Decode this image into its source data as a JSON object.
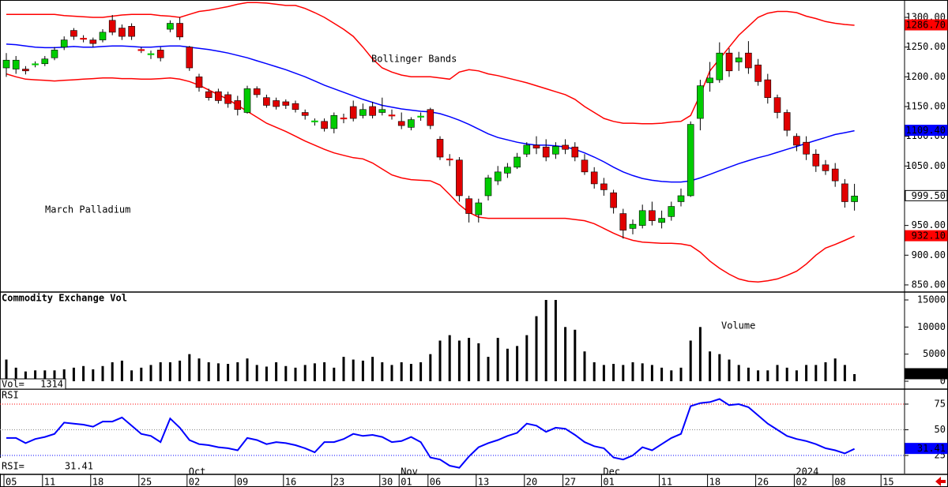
{
  "chart_data": [
    {
      "type": "candlestick",
      "title": "March Palladium",
      "annotation": "Bollinger Bands",
      "categories": [
        "05",
        null,
        null,
        null,
        "11",
        null,
        null,
        null,
        null,
        "18",
        null,
        null,
        null,
        null,
        "25",
        null,
        null,
        null,
        null,
        "02",
        null,
        null,
        null,
        null,
        "09",
        null,
        null,
        null,
        null,
        "16",
        null,
        null,
        null,
        null,
        "23",
        null,
        null,
        null,
        null,
        "30",
        null,
        "01",
        null,
        null,
        "06",
        null,
        null,
        null,
        null,
        "13",
        null,
        null,
        null,
        null,
        "20",
        null,
        null,
        null,
        "27",
        null,
        null,
        null,
        "01",
        null,
        null,
        null,
        null,
        null,
        "11",
        null,
        null,
        null,
        null,
        "18",
        null,
        null,
        null,
        null,
        "26",
        null,
        null,
        null,
        "02",
        null,
        null,
        null,
        "08",
        null,
        null,
        null,
        null,
        "15"
      ],
      "category_groups": [
        null,
        null,
        null,
        null,
        null,
        null,
        null,
        null,
        null,
        null,
        null,
        null,
        null,
        null,
        null,
        null,
        null,
        null,
        null,
        "Oct",
        null,
        null,
        null,
        null,
        null,
        null,
        null,
        null,
        null,
        null,
        null,
        null,
        null,
        null,
        null,
        null,
        null,
        null,
        null,
        null,
        null,
        "Nov",
        null,
        null,
        null,
        null,
        null,
        null,
        null,
        null,
        null,
        null,
        null,
        null,
        null,
        null,
        null,
        null,
        null,
        null,
        null,
        null,
        "Dec",
        null,
        null,
        null,
        null,
        null,
        null,
        null,
        null,
        null,
        null,
        null,
        null,
        null,
        null,
        null,
        null,
        null,
        null,
        null,
        "2024",
        null,
        null,
        null,
        null,
        null,
        null,
        null,
        null,
        null
      ],
      "open": [
        1215,
        1213,
        1213,
        1221,
        1222,
        1232,
        1250,
        1278,
        1265,
        1262,
        1262,
        1295,
        1282,
        1285,
        1246,
        1238,
        1245,
        1280,
        1290,
        1250,
        1200,
        1175,
        1175,
        1170,
        1160,
        1140,
        1180,
        1165,
        1160,
        1158,
        1155,
        1140,
        1124,
        1125,
        1113,
        1131,
        1150,
        1135,
        1150,
        1140,
        1136,
        1125,
        1115,
        1132,
        1145,
        1095,
        1062,
        1060,
        995,
        968,
        1000,
        1025,
        1038,
        1048,
        1070,
        1085,
        1082,
        1070,
        1085,
        1082,
        1060,
        1040,
        1020,
        1005,
        970,
        945,
        950,
        975,
        955,
        965,
        990,
        1000,
        1130,
        1190,
        1195,
        1240,
        1225,
        1240,
        1220,
        1195,
        1165,
        1140,
        1100,
        1090,
        1070,
        1052,
        1045,
        1020,
        990,
        null,
        null,
        null
      ],
      "high": [
        1240,
        1235,
        1218,
        1226,
        1235,
        1250,
        1268,
        1282,
        1270,
        1266,
        1280,
        1304,
        1288,
        1290,
        1250,
        1244,
        1250,
        1295,
        1300,
        1252,
        1205,
        1180,
        1180,
        1175,
        1168,
        1185,
        1184,
        1170,
        1165,
        1162,
        1160,
        1145,
        1130,
        1130,
        1140,
        1138,
        1160,
        1155,
        1158,
        1165,
        1145,
        1140,
        1132,
        1140,
        1148,
        1100,
        1070,
        1065,
        1000,
        995,
        1035,
        1050,
        1055,
        1072,
        1090,
        1100,
        1095,
        1090,
        1095,
        1090,
        1070,
        1048,
        1030,
        1010,
        978,
        960,
        985,
        990,
        975,
        990,
        1012,
        1125,
        1195,
        1225,
        1258,
        1248,
        1242,
        1260,
        1230,
        1205,
        1170,
        1145,
        1105,
        1100,
        1078,
        1060,
        1055,
        1028,
        1020,
        null,
        null,
        null
      ],
      "low": [
        1200,
        1205,
        1204,
        1216,
        1218,
        1228,
        1245,
        1262,
        1258,
        1250,
        1258,
        1270,
        1262,
        1262,
        1240,
        1230,
        1226,
        1275,
        1262,
        1210,
        1175,
        1160,
        1155,
        1148,
        1135,
        1138,
        1165,
        1148,
        1145,
        1146,
        1140,
        1128,
        1118,
        1108,
        1105,
        1122,
        1125,
        1130,
        1130,
        1135,
        1128,
        1112,
        1110,
        1126,
        1112,
        1060,
        1050,
        990,
        955,
        955,
        992,
        1018,
        1030,
        1045,
        1065,
        1070,
        1058,
        1062,
        1070,
        1058,
        1035,
        1012,
        1000,
        970,
        928,
        935,
        945,
        950,
        945,
        958,
        982,
        998,
        1110,
        1175,
        1190,
        1200,
        1210,
        1205,
        1185,
        1155,
        1130,
        1100,
        1075,
        1060,
        1040,
        1035,
        1015,
        980,
        975,
        null,
        null,
        null
      ],
      "close": [
        1228,
        1228,
        1210,
        1222,
        1230,
        1245,
        1262,
        1268,
        1264,
        1256,
        1275,
        1275,
        1268,
        1268,
        1245,
        1239,
        1232,
        1290,
        1267,
        1215,
        1182,
        1165,
        1160,
        1155,
        1145,
        1180,
        1170,
        1152,
        1150,
        1152,
        1145,
        1135,
        1126,
        1113,
        1135,
        1130,
        1130,
        1145,
        1135,
        1145,
        1135,
        1118,
        1128,
        1134,
        1118,
        1065,
        1060,
        1000,
        970,
        988,
        1030,
        1040,
        1048,
        1065,
        1085,
        1080,
        1065,
        1083,
        1078,
        1065,
        1040,
        1020,
        1010,
        980,
        942,
        952,
        975,
        958,
        962,
        982,
        1000,
        1120,
        1185,
        1198,
        1240,
        1210,
        1232,
        1215,
        1192,
        1165,
        1140,
        1110,
        1085,
        1070,
        1050,
        1042,
        1025,
        990,
        999.5,
        null,
        null,
        null
      ],
      "close_label": "999.50",
      "up_color": "#00cc00",
      "down_color": "#e00000",
      "series": [
        {
          "color": "#ff0000",
          "last_label": "1286.70",
          "values": [
            1305,
            1305,
            1305,
            1305,
            1305,
            1305,
            1303,
            1302,
            1301,
            1300,
            1300,
            1302,
            1304,
            1305,
            1305,
            1305,
            1303,
            1302,
            1300,
            1305,
            1310,
            1312,
            1315,
            1318,
            1322,
            1325,
            1325,
            1324,
            1322,
            1320,
            1320,
            1315,
            1308,
            1300,
            1290,
            1280,
            1268,
            1250,
            1230,
            1215,
            1208,
            1203,
            1200,
            1200,
            1200,
            1198,
            1196,
            1208,
            1212,
            1210,
            1205,
            1202,
            1198,
            1194,
            1190,
            1185,
            1180,
            1175,
            1170,
            1162,
            1150,
            1140,
            1130,
            1125,
            1122,
            1122,
            1121,
            1121,
            1122,
            1124,
            1125,
            1135,
            1170,
            1210,
            1230,
            1250,
            1270,
            1285,
            1300,
            1307,
            1310,
            1310,
            1308,
            1302,
            1298,
            1293,
            1290,
            1288,
            1286.7,
            null,
            null,
            null
          ]
        },
        {
          "color": "#0000ff",
          "last_label": "1109.40",
          "values": [
            1255,
            1254,
            1252,
            1250,
            1249,
            1249,
            1250,
            1251,
            1250,
            1250,
            1251,
            1252,
            1252,
            1251,
            1250,
            1250,
            1251,
            1252,
            1252,
            1250,
            1248,
            1246,
            1243,
            1240,
            1236,
            1232,
            1227,
            1222,
            1217,
            1212,
            1206,
            1200,
            1193,
            1186,
            1180,
            1174,
            1168,
            1162,
            1157,
            1152,
            1149,
            1146,
            1144,
            1142,
            1141,
            1138,
            1133,
            1127,
            1120,
            1112,
            1104,
            1098,
            1094,
            1090,
            1087,
            1085,
            1085,
            1084,
            1082,
            1078,
            1072,
            1065,
            1057,
            1048,
            1040,
            1034,
            1029,
            1026,
            1024,
            1023,
            1023,
            1025,
            1030,
            1036,
            1042,
            1048,
            1054,
            1059,
            1064,
            1068,
            1073,
            1078,
            1083,
            1088,
            1093,
            1098,
            1103,
            1106,
            1109.4,
            null,
            null,
            null
          ]
        },
        {
          "color": "#ff0000",
          "last_label": "932.10",
          "values": [
            1205,
            1200,
            1196,
            1195,
            1194,
            1193,
            1194,
            1195,
            1196,
            1197,
            1198,
            1198,
            1197,
            1197,
            1196,
            1196,
            1197,
            1198,
            1196,
            1192,
            1186,
            1178,
            1170,
            1162,
            1152,
            1142,
            1132,
            1122,
            1115,
            1108,
            1100,
            1092,
            1085,
            1078,
            1072,
            1068,
            1064,
            1062,
            1055,
            1045,
            1035,
            1030,
            1027,
            1026,
            1025,
            1018,
            1002,
            985,
            972,
            964,
            962,
            962,
            962,
            962,
            962,
            962,
            962,
            962,
            962,
            960,
            958,
            953,
            945,
            937,
            930,
            925,
            922,
            921,
            920,
            920,
            919,
            916,
            905,
            890,
            878,
            868,
            860,
            856,
            855,
            857,
            860,
            866,
            873,
            885,
            900,
            912,
            918,
            925,
            932.1,
            null,
            null,
            null
          ]
        }
      ],
      "ylim": [
        838,
        1329.2
      ],
      "yticks": [
        {
          "value": 1300,
          "label": "1300.00"
        },
        {
          "value": 1250,
          "label": "1250.00"
        },
        {
          "value": 1200,
          "label": "1200.00"
        },
        {
          "value": 1150,
          "label": "1150.00"
        },
        {
          "value": 1100,
          "label": "1100.00"
        },
        {
          "value": 1050,
          "label": "1050.00"
        },
        {
          "value": 1000,
          "label": "1000.00"
        },
        {
          "value": 950,
          "label": "950.00"
        },
        {
          "value": 900,
          "label": "900.00"
        },
        {
          "value": 850,
          "label": "850.00"
        }
      ]
    },
    {
      "type": "bar",
      "title": "Commodity Exchange Vol",
      "annotation": "Volume",
      "readout_label": "Vol=",
      "last_label": "1314",
      "color": "#000000",
      "values": [
        4000,
        2500,
        1800,
        2000,
        2000,
        2000,
        2200,
        2500,
        2800,
        2200,
        2800,
        3500,
        3800,
        2000,
        2500,
        3000,
        3500,
        3500,
        3800,
        5000,
        4200,
        3500,
        3300,
        3200,
        3500,
        4200,
        3000,
        2700,
        3500,
        2800,
        2500,
        3000,
        3300,
        3500,
        2500,
        4500,
        4000,
        3800,
        4500,
        3500,
        3000,
        3500,
        3200,
        3500,
        5000,
        7500,
        8500,
        7500,
        8000,
        7000,
        4500,
        8000,
        6000,
        6500,
        8500,
        12000,
        15000,
        15000,
        10000,
        9500,
        5500,
        3500,
        3000,
        3200,
        3000,
        3500,
        3300,
        3000,
        2500,
        2000,
        2500,
        7500,
        10000,
        5500,
        5000,
        4000,
        3000,
        2500,
        2000,
        2000,
        3000,
        2500,
        2000,
        3000,
        3000,
        3500,
        4200,
        3000,
        1314,
        null,
        null,
        null
      ],
      "ylim": [
        -1456,
        16456
      ],
      "yticks": [
        0,
        5000,
        10000,
        15000
      ]
    },
    {
      "type": "line",
      "title": "RSI",
      "readout_label": "RSI=",
      "last_label": "31.41",
      "color": "#0000ff",
      "values": [
        42,
        42,
        37,
        41,
        43,
        46,
        57,
        56,
        55,
        53,
        58,
        58,
        62,
        54,
        46,
        44,
        38,
        61,
        52,
        40,
        36,
        35,
        33,
        32,
        30,
        42,
        40,
        36,
        38,
        37,
        35,
        32,
        28,
        38,
        38,
        41,
        46,
        44,
        45,
        43,
        38,
        39,
        43,
        38,
        23,
        21,
        15,
        13,
        24,
        33,
        37,
        40,
        44,
        47,
        56,
        54,
        48,
        52,
        51,
        45,
        38,
        34,
        32,
        23,
        21,
        25,
        33,
        30,
        36,
        42,
        46,
        73,
        76,
        77,
        80,
        74,
        75,
        72,
        64,
        56,
        50,
        44,
        41,
        39,
        36,
        32,
        30,
        27,
        31.41,
        null,
        null,
        null
      ],
      "ylim": [
        7.3,
        89.6
      ],
      "yticks": [
        25,
        50,
        75
      ],
      "grid": true,
      "grid_colors": [
        "#0000ff",
        "#888888",
        "#ff0000"
      ]
    }
  ]
}
